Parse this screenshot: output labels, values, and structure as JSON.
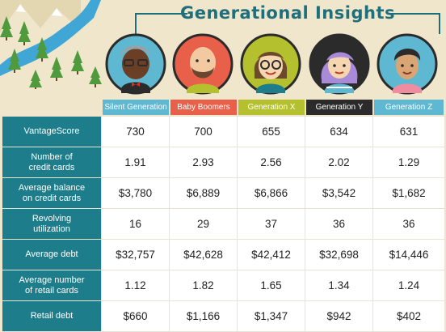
{
  "title": "Generational Insights",
  "generations": [
    "Silent Generation",
    "Baby Boomers",
    "Generation X",
    "Generation Y",
    "Generation Z"
  ],
  "colors": {
    "teal": "#1d7d8a",
    "silent": "#5fb8d2",
    "boomers": "#e8604a",
    "genx": "#b5c02e",
    "geny": "#2b2b2b",
    "genz": "#5fb8d2",
    "background": "#efe6cc"
  },
  "rows": [
    {
      "label": "VantageScore",
      "values": [
        "730",
        "700",
        "655",
        "634",
        "631"
      ]
    },
    {
      "label": "Number of\ncredit cards",
      "values": [
        "1.91",
        "2.93",
        "2.56",
        "2.02",
        "1.29"
      ]
    },
    {
      "label": "Average balance\non credit cards",
      "values": [
        "$3,780",
        "$6,889",
        "$6,866",
        "$3,542",
        "$1,682"
      ]
    },
    {
      "label": "Revolving\nutilization",
      "values": [
        "16",
        "29",
        "37",
        "36",
        "36"
      ]
    },
    {
      "label": "Average debt",
      "values": [
        "$32,757",
        "$42,628",
        "$42,412",
        "$32,698",
        "$14,446"
      ]
    },
    {
      "label": "Average number\nof retail cards",
      "values": [
        "1.12",
        "1.82",
        "1.65",
        "1.34",
        "1.24"
      ]
    },
    {
      "label": "Retail debt",
      "values": [
        "$660",
        "$1,166",
        "$1,347",
        "$942",
        "$402"
      ]
    }
  ],
  "icons": [
    "mountain-icon",
    "tree-icon",
    "silent-generation-avatar-icon",
    "baby-boomer-avatar-icon",
    "generation-x-avatar-icon",
    "generation-y-avatar-icon",
    "generation-z-avatar-icon"
  ]
}
